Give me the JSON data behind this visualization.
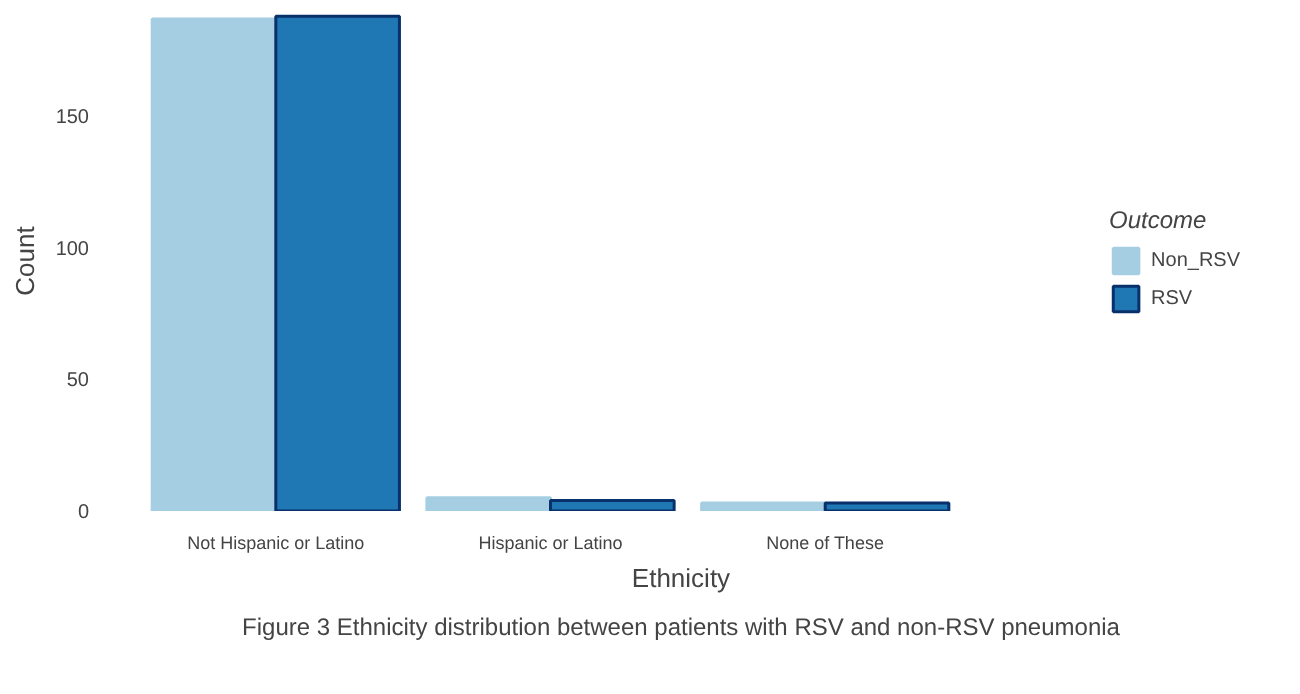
{
  "chart_data": {
    "type": "bar",
    "xlabel": "Ethnicity",
    "ylabel": "Count",
    "legend_title": "Outcome",
    "legend": "right",
    "categories": [
      "Not Hispanic or Latino",
      "Hispanic or Latino",
      "None of These"
    ],
    "series": [
      {
        "name": "Non_RSV",
        "color": "#a6cee3",
        "values": [
          187,
          5,
          3
        ]
      },
      {
        "name": "RSV",
        "color": "#1f78b4",
        "values": [
          188,
          4,
          3
        ]
      }
    ],
    "ylim": [
      0,
      190
    ],
    "yticks": [
      0,
      50,
      100,
      150
    ],
    "grid": false,
    "annotations": [
      "Figure 3 Ethnicity distribution between patients with RSV and non-RSV pneumonia"
    ]
  }
}
